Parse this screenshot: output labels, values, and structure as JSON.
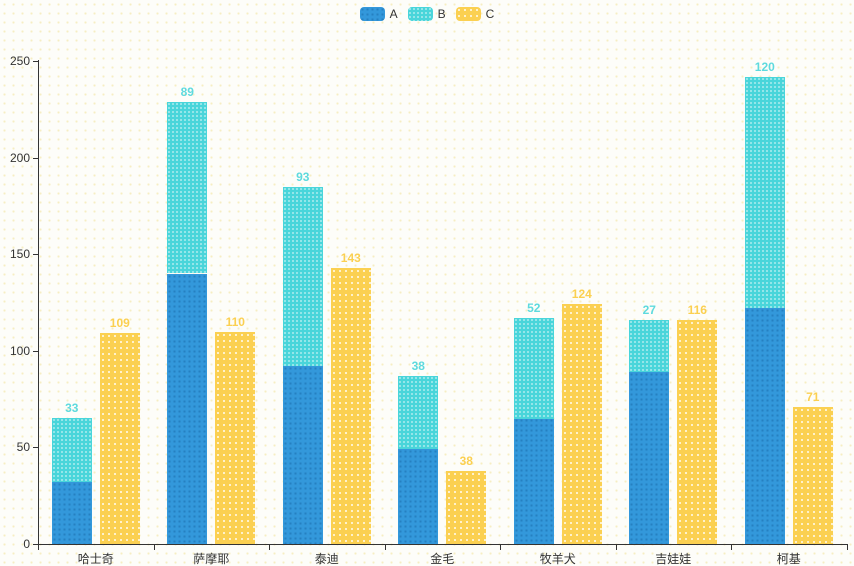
{
  "chart_data": {
    "type": "bar",
    "title": "",
    "xlabel": "",
    "ylabel": "",
    "categories": [
      "哈士奇",
      "萨摩耶",
      "泰迪",
      "金毛",
      "牧羊犬",
      "吉娃娃",
      "柯基"
    ],
    "series": [
      {
        "name": "A",
        "color": "#3398db",
        "stack": "total",
        "show_labels": false,
        "label_color": "#3398db",
        "values": [
          32,
          140,
          92,
          49,
          65,
          89,
          122
        ]
      },
      {
        "name": "B",
        "color": "#49d5da",
        "stack": "total",
        "show_labels": true,
        "label_color": "#5edade",
        "values": [
          33,
          89,
          93,
          38,
          52,
          27,
          120
        ]
      },
      {
        "name": "C",
        "color": "#fbd051",
        "stack": null,
        "show_labels": true,
        "label_color": "#fbd051",
        "values": [
          109,
          110,
          143,
          38,
          124,
          116,
          71
        ]
      }
    ],
    "ylim": [
      0,
      250
    ],
    "yticks": [
      0,
      50,
      100,
      150,
      200,
      250
    ],
    "grid": false,
    "legend_position": "top-center",
    "axis_color": "#333333",
    "label_color": "#333333"
  }
}
